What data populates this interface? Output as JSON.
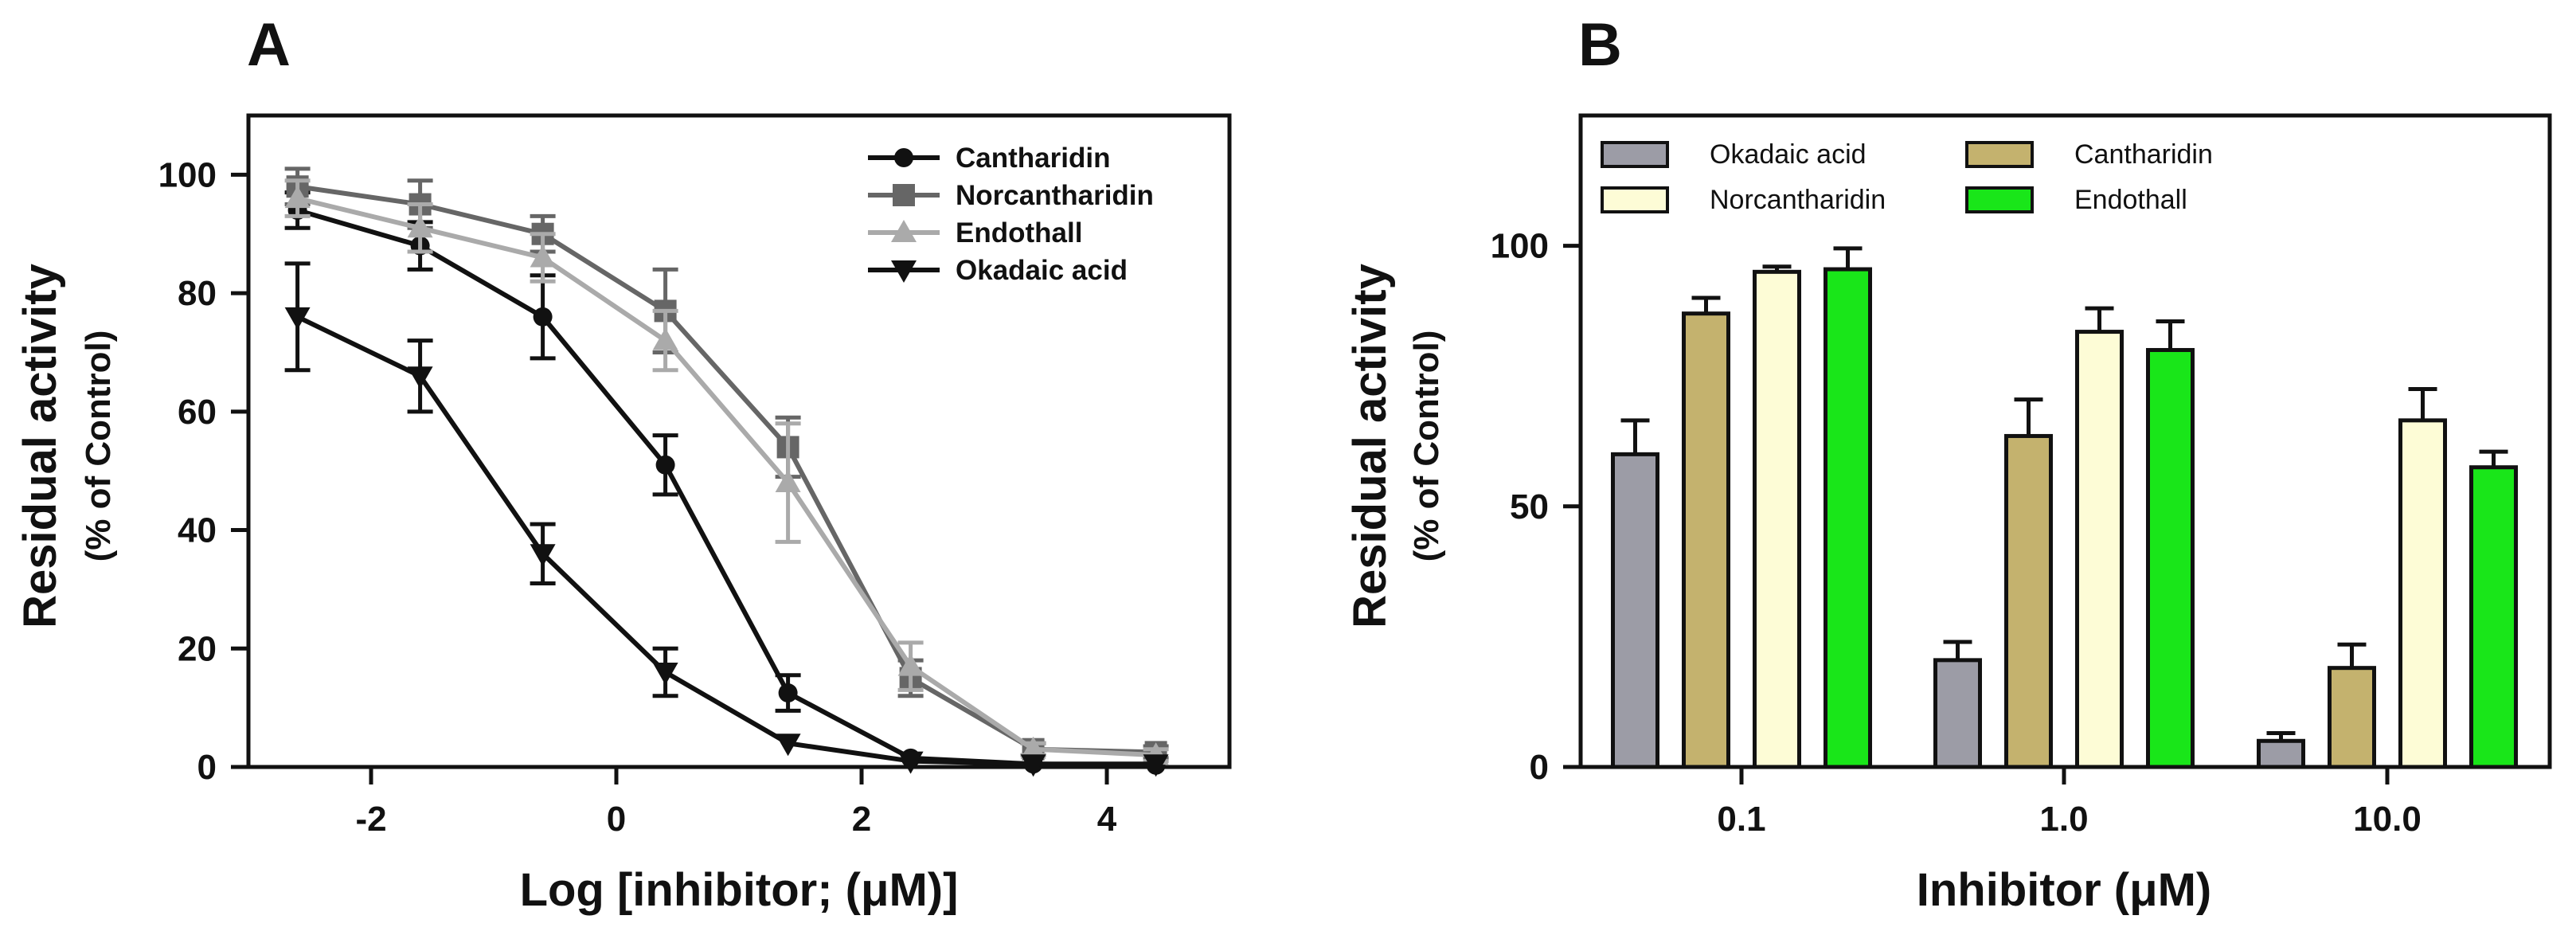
{
  "chart_data": [
    {
      "panel": "A",
      "type": "line",
      "title": "",
      "xlabel": "Log [inhibitor; (μM)]",
      "ylabel": "Residual activity",
      "ylabel_sub": "(% of Control)",
      "xlim": [
        -3,
        5
      ],
      "ylim": [
        0,
        110
      ],
      "xticks": [
        "-2",
        "0",
        "2",
        "4"
      ],
      "xtick_values": [
        -2,
        0,
        2,
        4
      ],
      "yticks": [
        "0",
        "20",
        "40",
        "60",
        "80",
        "100"
      ],
      "ytick_values": [
        0,
        20,
        40,
        60,
        80,
        100
      ],
      "legend_position": "top-right",
      "series": [
        {
          "name": "Cantharidin",
          "marker": "circle",
          "color": "#111111",
          "x": [
            -2.6,
            -1.6,
            -0.6,
            0.4,
            1.4,
            2.4,
            3.4,
            4.4
          ],
          "y": [
            94,
            88,
            76,
            51,
            12.5,
            1.5,
            0.5,
            0.3
          ],
          "err": [
            3,
            4,
            7,
            5,
            3,
            0.5,
            0.3,
            0.3
          ]
        },
        {
          "name": "Norcantharidin",
          "marker": "square",
          "color": "#666666",
          "x": [
            -2.6,
            -1.6,
            -0.6,
            0.4,
            1.4,
            2.4,
            3.4,
            4.4
          ],
          "y": [
            98,
            95,
            90,
            77,
            54,
            15,
            3,
            2.5
          ],
          "err": [
            3,
            4,
            3,
            7,
            5,
            3,
            1,
            1
          ]
        },
        {
          "name": "Endothall",
          "marker": "triangle-up",
          "color": "#aaaaaa",
          "x": [
            -2.6,
            -1.6,
            -0.6,
            0.4,
            1.4,
            2.4,
            3.4,
            4.4
          ],
          "y": [
            96,
            91,
            86,
            72,
            48,
            17,
            3,
            2
          ],
          "err": [
            3,
            4,
            4,
            5,
            10,
            4,
            1,
            1
          ]
        },
        {
          "name": "Okadaic acid",
          "marker": "triangle-down",
          "color": "#111111",
          "x": [
            -2.6,
            -1.6,
            -0.6,
            0.4,
            1.4,
            2.4,
            3.4,
            4.4
          ],
          "y": [
            76,
            66,
            36,
            16,
            4,
            1,
            0.5,
            0.5
          ],
          "err": [
            9,
            6,
            5,
            4,
            0.5,
            0.3,
            0.3,
            0.3
          ]
        }
      ]
    },
    {
      "panel": "B",
      "type": "bar",
      "title": "",
      "xlabel": "Inhibitor (μM)",
      "ylabel": "Residual activity",
      "ylabel_sub": "(% of Control)",
      "ylim": [
        0,
        125
      ],
      "yticks": [
        "0",
        "50",
        "100"
      ],
      "ytick_values": [
        0,
        50,
        100
      ],
      "categories": [
        "0.1",
        "1.0",
        "10.0"
      ],
      "legend_position": "top",
      "series": [
        {
          "name": "Okadaic acid",
          "color": "#9c9ca6",
          "values": [
            60,
            20.5,
            5
          ],
          "err": [
            6.5,
            3.5,
            1.5
          ]
        },
        {
          "name": "Cantharidin",
          "color": "#c4b26e",
          "values": [
            87,
            63.5,
            19
          ],
          "err": [
            3,
            7,
            4.5
          ]
        },
        {
          "name": "Norcantharidin",
          "color": "#fdfcd6",
          "values": [
            95,
            83.5,
            66.5
          ],
          "err": [
            1,
            4.5,
            6
          ]
        },
        {
          "name": "Endothall",
          "color": "#19e619",
          "values": [
            95.5,
            80,
            57.5
          ],
          "err": [
            4,
            5.5,
            3
          ]
        }
      ]
    }
  ]
}
